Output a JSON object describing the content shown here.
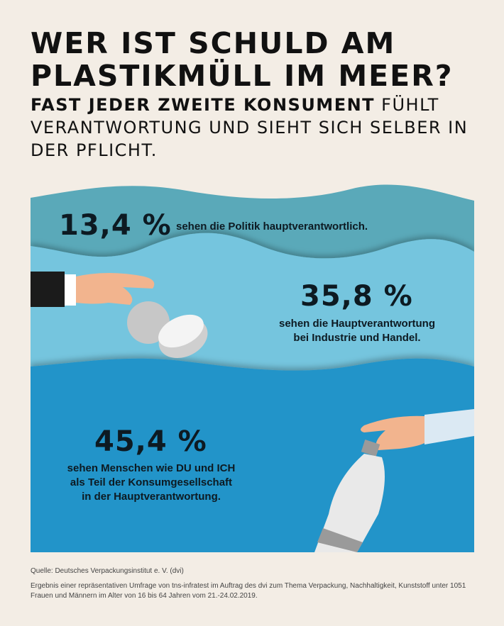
{
  "header": {
    "title_line1": "WER IST SCHULD AM",
    "title_line2": "PLASTIKMÜLL IM MEER?",
    "subtitle_bold": "FAST JEDER ZWEITE KONSUMENT",
    "subtitle_rest": " FÜHLT VERANTWORTUNG UND SIEHT SICH SELBER IN DER PFLICHT."
  },
  "stats": [
    {
      "value": "13,4 %",
      "text": "sehen die Politik hauptverantwortlich.",
      "color": "#5aa9b9"
    },
    {
      "value": "35,8 %",
      "line1": "sehen die Hauptverantwortung",
      "line2": "bei Industrie und Handel.",
      "color": "#74c5de"
    },
    {
      "value": "45,4 %",
      "line1": "sehen Menschen wie DU und ICH",
      "line2": "als Teil der Konsumgesellschaft",
      "line3": "in der Hauptverantwortung.",
      "color": "#2394c9"
    }
  ],
  "footer": {
    "source": "Quelle: Deutsches Verpackungsinstitut e. V. (dvi)",
    "note": "Ergebnis einer repräsentativen Umfrage von tns-infratest im Auftrag des dvi zum Thema Verpackung, Nachhaltigkeit, Kunststoff unter 1051 Frauen und Männern im Alter von 16 bis 64 Jahren vom 21.-24.02.2019."
  }
}
